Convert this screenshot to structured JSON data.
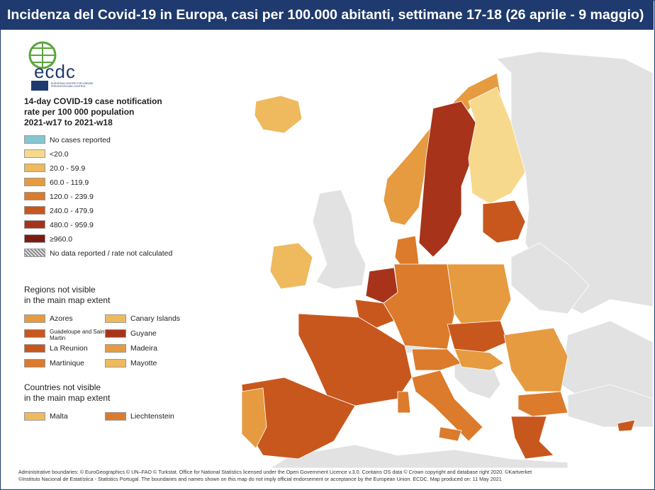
{
  "header": {
    "title": "Incidenza del Covid-19 in Europa, casi per 100.000 abitanti, settimane 17-18 (26 aprile - 9 maggio)"
  },
  "logo": {
    "text": "ecdc",
    "subtitle": "EUROPEAN CENTRE FOR DISEASE PREVENTION AND CONTROL"
  },
  "legend": {
    "title": [
      "14-day COVID-19 case notification",
      "rate per 100 000 population",
      "2021-w17 to 2021-w18"
    ],
    "items": [
      {
        "label": "No cases reported",
        "color": "#86c6d0"
      },
      {
        "label": "<20.0",
        "color": "#f6d98c"
      },
      {
        "label": "20.0 - 59.9",
        "color": "#efb95e"
      },
      {
        "label": "60.0 - 119.9",
        "color": "#e69b40"
      },
      {
        "label": "120.0 - 239.9",
        "color": "#db7b2b"
      },
      {
        "label": "240.0 - 479.9",
        "color": "#c8571d"
      },
      {
        "label": "480.0 - 959.9",
        "color": "#a7331b"
      },
      {
        "label": "≥960.0",
        "color": "#7c1b12"
      },
      {
        "label": "No data reported / rate not calculated",
        "color": "hatch"
      }
    ]
  },
  "regions": {
    "title": [
      "Regions not visible",
      "in the main map extent"
    ],
    "items": [
      {
        "label": "Azores",
        "color": "#e69b40"
      },
      {
        "label": "Canary Islands",
        "color": "#efb95e"
      },
      {
        "label": "Guadeloupe and Saint Martin",
        "color": "#c8571d"
      },
      {
        "label": "Guyane",
        "color": "#a7331b"
      },
      {
        "label": "La Reunion",
        "color": "#c8571d"
      },
      {
        "label": "Madeira",
        "color": "#e69b40"
      },
      {
        "label": "Martinique",
        "color": "#db7b2b"
      },
      {
        "label": "Mayotte",
        "color": "#efb95e"
      }
    ]
  },
  "countries": {
    "title": [
      "Countries not visible",
      "in the main map extent"
    ],
    "items": [
      {
        "label": "Malta",
        "color": "#efb95e"
      },
      {
        "label": "Liechtenstein",
        "color": "#db7b2b"
      }
    ]
  },
  "footer": [
    "Administrative boundaries: © EuroGeographics © UN–FAO © Turkstat. Office for National Statistics licensed under the Open Government Licence v.3.0. Contains OS data © Crown copyright and database right 2020. ©Kartverket",
    "©Instituto Nacional de Estatística - Statistics Portugal. The boundaries and names shown on this map do not imply official endorsement or acceptance by the European Union. ECDC. Map produced on: 11 May 2021"
  ]
}
